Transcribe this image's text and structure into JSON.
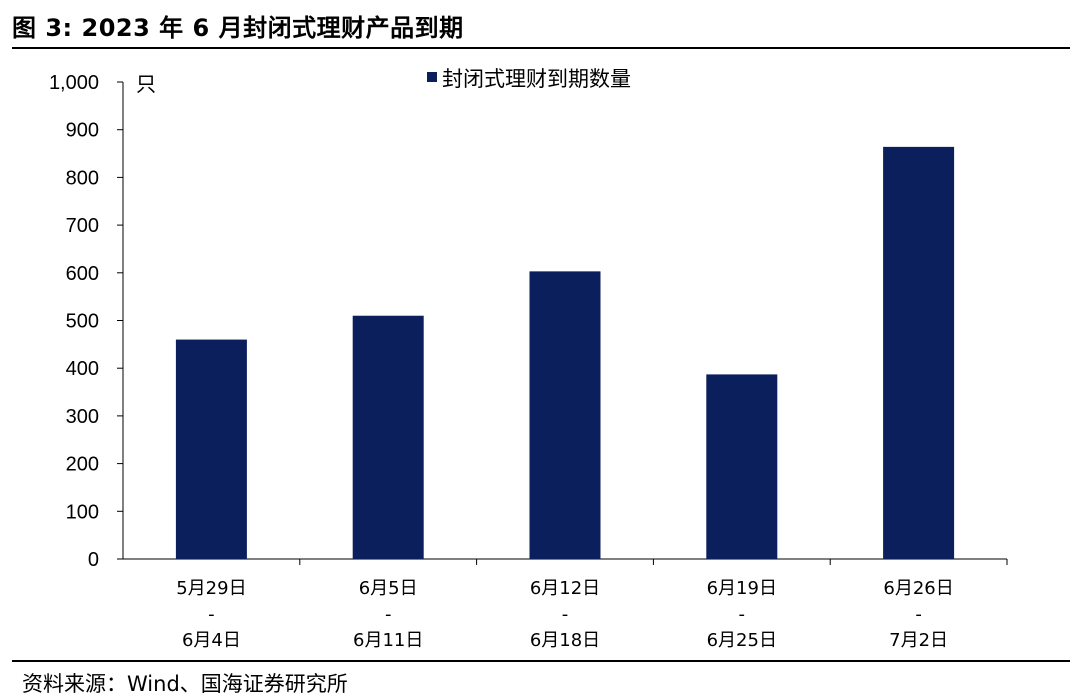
{
  "figure": {
    "title": "图 3:  2023 年 6 月封闭式理财产品到期",
    "source": "资料来源：Wind、国海证券研究所"
  },
  "chart_data": {
    "type": "bar",
    "categories": [
      [
        "5月29日",
        "-",
        "6月4日"
      ],
      [
        "6月5日",
        "-",
        "6月11日"
      ],
      [
        "6月12日",
        "-",
        "6月18日"
      ],
      [
        "6月19日",
        "-",
        "6月25日"
      ],
      [
        "6月26日",
        "-",
        "7月2日"
      ]
    ],
    "series": [
      {
        "name": "封闭式理财到期数量",
        "values": [
          460,
          510,
          603,
          387,
          864
        ],
        "color": "#0a1f5c"
      }
    ],
    "y_unit": "只",
    "ylim": [
      0,
      1000
    ],
    "yticks": [
      0,
      100,
      200,
      300,
      400,
      500,
      600,
      700,
      800,
      900,
      1000
    ],
    "ytick_labels": [
      "0",
      "100",
      "200",
      "300",
      "400",
      "500",
      "600",
      "700",
      "800",
      "900",
      "1,000"
    ],
    "legend_position": "top-center",
    "grid": false
  }
}
